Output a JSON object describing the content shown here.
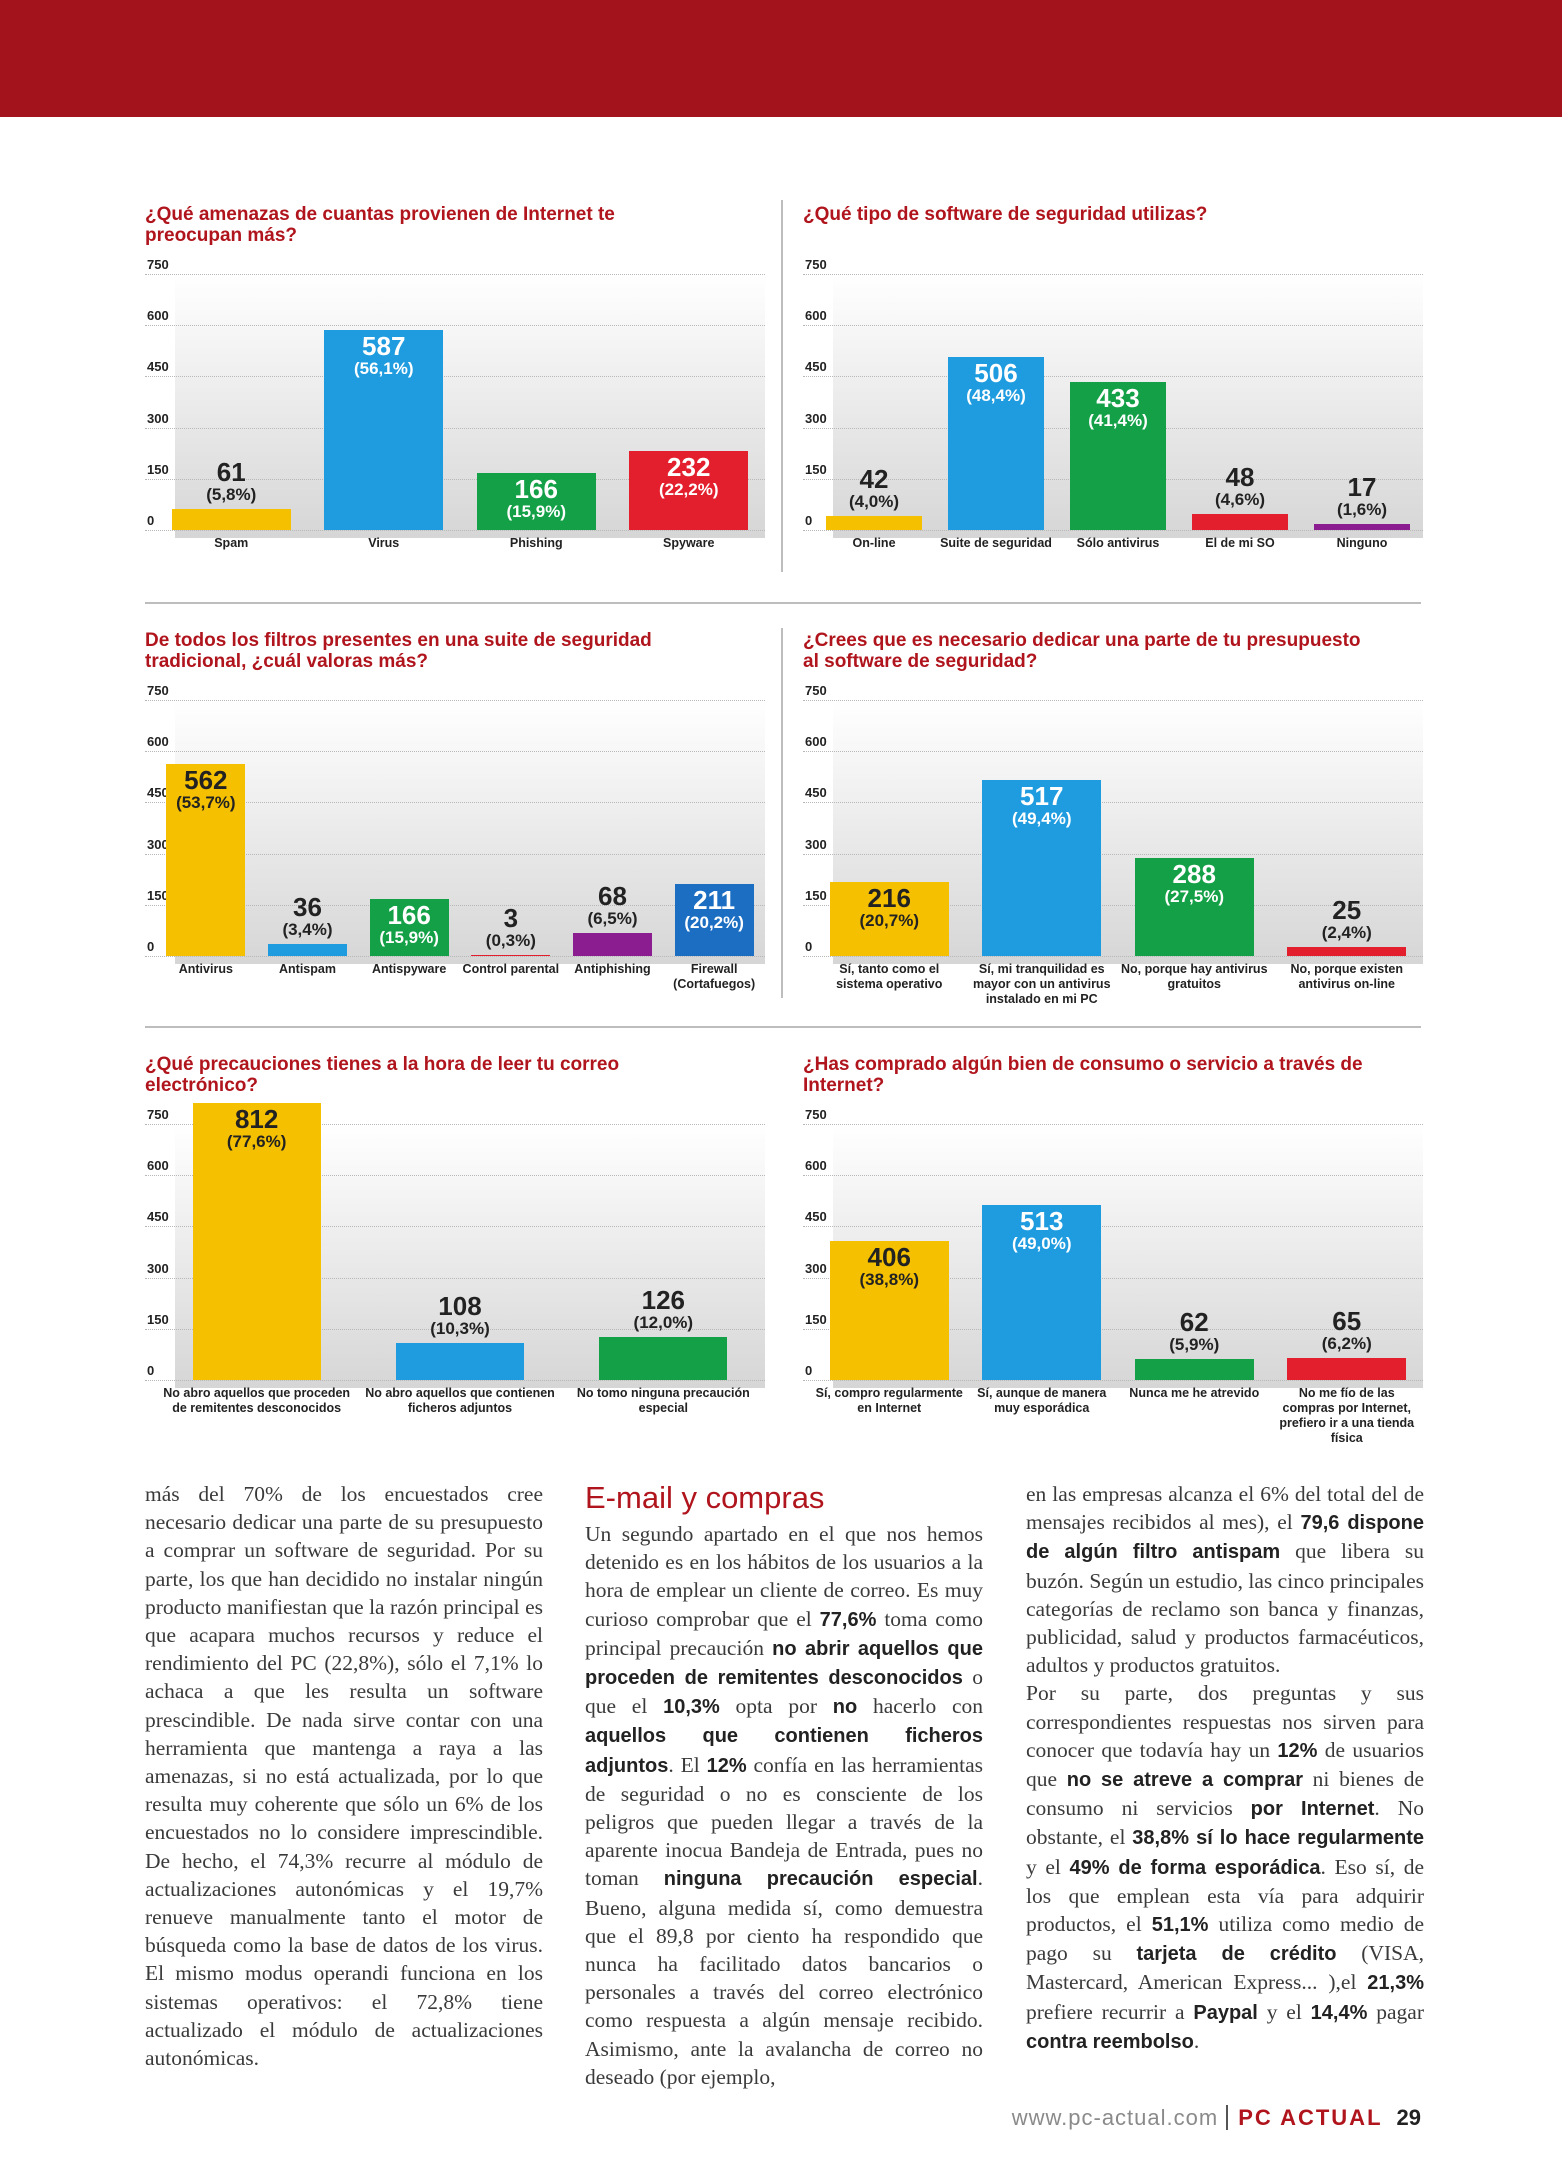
{
  "chart_data": [
    {
      "type": "bar",
      "title": "¿Qué amenazas de cuantas provienen de Internet te preocupan más?",
      "categories": [
        "Spam",
        "Virus",
        "Phishing",
        "Spyware"
      ],
      "values": [
        61,
        587,
        166,
        232
      ],
      "percent_labels": [
        "(5,8%)",
        "(56,1%)",
        "(15,9%)",
        "(22,2%)"
      ],
      "colors": [
        "#f5c000",
        "#1f9ce0",
        "#13a046",
        "#e41f2d"
      ],
      "ylim": [
        0,
        750
      ],
      "yticks": [
        0,
        150,
        300,
        450,
        600,
        750
      ],
      "grid": true
    },
    {
      "type": "bar",
      "title": "¿Qué tipo de software de seguridad utilizas?",
      "categories": [
        "On-line",
        "Suite de seguridad",
        "Sólo antivirus",
        "El de mi SO",
        "Ninguno"
      ],
      "values": [
        42,
        506,
        433,
        48,
        17
      ],
      "percent_labels": [
        "(4,0%)",
        "(48,4%)",
        "(41,4%)",
        "(4,6%)",
        "(1,6%)"
      ],
      "colors": [
        "#f5c000",
        "#1f9ce0",
        "#13a046",
        "#e41f2d",
        "#8b1d90"
      ],
      "ylim": [
        0,
        750
      ],
      "yticks": [
        0,
        150,
        300,
        450,
        600,
        750
      ],
      "grid": true
    },
    {
      "type": "bar",
      "title": "De todos los filtros presentes en una suite de seguridad tradicional, ¿cuál valoras más?",
      "categories": [
        "Antivirus",
        "Antispam",
        "Antispyware",
        "Control parental",
        "Antiphishing",
        "Firewall (Cortafuegos)"
      ],
      "values": [
        562,
        36,
        166,
        3,
        68,
        211
      ],
      "percent_labels": [
        "(53,7%)",
        "(3,4%)",
        "(15,9%)",
        "(0,3%)",
        "(6,5%)",
        "(20,2%)"
      ],
      "colors": [
        "#f5c000",
        "#1f9ce0",
        "#13a046",
        "#e41f2d",
        "#8b1d90",
        "#1b6ec2"
      ],
      "ylim": [
        0,
        750
      ],
      "yticks": [
        0,
        150,
        300,
        450,
        600,
        750
      ],
      "grid": true
    },
    {
      "type": "bar",
      "title": "¿Crees que es necesario dedicar una parte de tu presupuesto al software de seguridad?",
      "categories": [
        "Sí, tanto como el sistema operativo",
        "Sí, mi tranquilidad es mayor con un antivirus instalado en mi PC",
        "No, porque hay antivirus gratuitos",
        "No, porque existen antivirus on-line"
      ],
      "values": [
        216,
        517,
        288,
        25
      ],
      "percent_labels": [
        "(20,7%)",
        "(49,4%)",
        "(27,5%)",
        "(2,4%)"
      ],
      "colors": [
        "#f5c000",
        "#1f9ce0",
        "#13a046",
        "#e41f2d"
      ],
      "ylim": [
        0,
        750
      ],
      "yticks": [
        0,
        150,
        300,
        450,
        600,
        750
      ],
      "grid": true
    },
    {
      "type": "bar",
      "title": "¿Qué precauciones tienes a la hora de leer tu correo electrónico?",
      "categories": [
        "No abro aquellos que proceden de remitentes desconocidos",
        "No abro aquellos que contienen ficheros adjuntos",
        "No tomo ninguna precaución especial"
      ],
      "values": [
        812,
        108,
        126
      ],
      "percent_labels": [
        "(77,6%)",
        "(10,3%)",
        "(12,0%)"
      ],
      "colors": [
        "#f5c000",
        "#1f9ce0",
        "#13a046"
      ],
      "ylim": [
        0,
        750
      ],
      "yticks": [
        0,
        150,
        300,
        450,
        600,
        750
      ],
      "grid": true
    },
    {
      "type": "bar",
      "title": "¿Has comprado algún bien de consumo o servicio a través de Internet?",
      "categories": [
        "Sí, compro regularmente en Internet",
        "Sí, aunque de manera muy esporádica",
        "Nunca me he atrevido",
        "No me fío de las compras por Internet, prefiero ir a una tienda física"
      ],
      "values": [
        406,
        513,
        62,
        65
      ],
      "percent_labels": [
        "(38,8%)",
        "(49,0%)",
        "(5,9%)",
        "(6,2%)"
      ],
      "colors": [
        "#f5c000",
        "#1f9ce0",
        "#13a046",
        "#e41f2d"
      ],
      "ylim": [
        0,
        750
      ],
      "yticks": [
        0,
        150,
        300,
        450,
        600,
        750
      ],
      "grid": true
    }
  ],
  "article": {
    "columns": [
      {
        "paragraphs": [
          [
            "más del 70% de los encuestados cree necesario dedicar una parte de su presupuesto a comprar un software de seguridad. Por su parte, los que han decidido no instalar ningún producto manifiestan que la razón principal es que acapara muchos recursos y reduce el rendimiento del PC (22,8%), sólo el 7,1% lo achaca a que les resulta un software prescindible. De nada sirve contar con una herramienta que mantenga a raya a las amenazas, si no está actualizada, por lo que resulta muy coherente que sólo un 6% de los encuestados no lo considere imprescindible. De hecho, el 74,3% recurre al módulo de actualizaciones autonómicas y el 19,7% renueve manualmente tanto el motor de búsqueda como la base de datos de los virus. El mismo modus operandi funciona en los sistemas operativos: el 72,8% tiene actualizado el módulo de actualizaciones autonómicas."
          ]
        ]
      },
      {
        "heading": "E-mail y compras",
        "paragraphs": [
          [
            "Un segundo apartado en el que nos hemos detenido es en los hábitos de los usuarios a la hora de emplear un cliente de correo. Es muy curioso comprobar que el ",
            "77,6%",
            " toma como principal precaución ",
            "no abrir aquellos que proceden de remitentes desconocidos",
            " o que el ",
            "10,3%",
            " opta por ",
            "no",
            " hacerlo con ",
            "aquellos que contienen ficheros adjuntos",
            ". El ",
            "12%",
            " confía en las herramientas de seguridad o no es consciente de los peligros que pueden llegar a través de la aparente inocua Bandeja de Entrada, pues no toman ",
            "ninguna precaución especial",
            ". Bueno, alguna medida sí, como demuestra que el 89,8 por ciento ha respondido que nunca ha facilitado datos bancarios o personales a través del correo electrónico como respuesta a algún mensaje recibido. Asimismo, ante la avalancha de correo no deseado (por ejemplo,"
          ]
        ]
      },
      {
        "paragraphs": [
          [
            "en las empresas alcanza el 6% del total del de mensajes recibidos al mes), el ",
            "79,6 dispone de algún filtro antispam",
            " que libera su buzón. Según un estudio, las cinco principales categorías de reclamo son banca y finanzas, publicidad, salud y productos farmacéuticos, adultos y productos gratuitos."
          ],
          [
            "Por su parte, dos preguntas y sus correspondientes respuestas nos sirven para conocer que todavía hay un ",
            "12%",
            " de usuarios que ",
            "no se atreve a comprar",
            " ni bienes de consumo ni servicios ",
            "por Internet",
            ". No obstante, el ",
            "38,8% sí lo hace regularmente",
            " y el ",
            "49% de forma esporádica",
            ". Eso sí, de los que emplean esta vía para adquirir productos, el ",
            "51,1%",
            " utiliza como medio de pago su ",
            "tarjeta de crédito",
            " (VISA, Mastercard, American Express... ),el ",
            "21,3%",
            " prefiere recurrir a ",
            "Paypal",
            " y el ",
            "14,4%",
            " pagar ",
            "contra reembolso",
            "."
          ]
        ]
      }
    ]
  },
  "footer": {
    "url": "www.pc-actual.com",
    "magazine": "PC ACTUAL",
    "page": "29"
  }
}
